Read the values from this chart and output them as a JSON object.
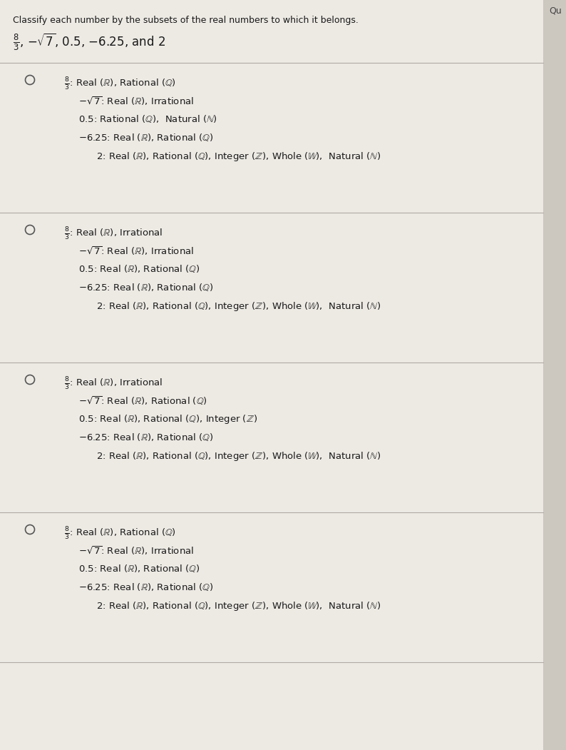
{
  "bg_color": "#ccc8c0",
  "white_bg": "#edeae4",
  "title": "Classify each number by the subsets of the real numbers to which it belongs.",
  "options": [
    {
      "lines": [
        {
          "indent": 0,
          "text": "$\\frac{8}{3}$: Real ($\\mathbb{R}$), Rational ($\\mathbb{Q}$)"
        },
        {
          "indent": 1,
          "text": "$-\\sqrt{7}$: Real ($\\mathbb{R}$), Irrational"
        },
        {
          "indent": 1,
          "text": "$0.5$: Rational ($\\mathbb{Q}$),  Natural ($\\mathbb{N}$)"
        },
        {
          "indent": 1,
          "text": "$-6.25$: Real ($\\mathbb{R}$), Rational ($\\mathbb{Q}$)"
        },
        {
          "indent": 2,
          "text": "$2$: Real ($\\mathbb{R}$), Rational ($\\mathbb{Q}$), Integer ($\\mathbb{Z}$), Whole ($\\mathbb{W}$),  Natural ($\\mathbb{N}$)"
        }
      ]
    },
    {
      "lines": [
        {
          "indent": 0,
          "text": "$\\frac{8}{3}$: Real ($\\mathbb{R}$), Irrational"
        },
        {
          "indent": 1,
          "text": "$-\\sqrt{7}$: Real ($\\mathbb{R}$), Irrational"
        },
        {
          "indent": 1,
          "text": "$0.5$: Real ($\\mathbb{R}$), Rational ($\\mathbb{Q}$)"
        },
        {
          "indent": 1,
          "text": "$-6.25$: Real ($\\mathbb{R}$), Rational ($\\mathbb{Q}$)"
        },
        {
          "indent": 2,
          "text": "$2$: Real ($\\mathbb{R}$), Rational ($\\mathbb{Q}$), Integer ($\\mathbb{Z}$), Whole ($\\mathbb{W}$),  Natural ($\\mathbb{N}$)"
        }
      ]
    },
    {
      "lines": [
        {
          "indent": 0,
          "text": "$\\frac{8}{3}$: Real ($\\mathbb{R}$), Irrational"
        },
        {
          "indent": 1,
          "text": "$-\\sqrt{7}$: Real ($\\mathbb{R}$), Rational ($\\mathbb{Q}$)"
        },
        {
          "indent": 1,
          "text": "$0.5$: Real ($\\mathbb{R}$), Rational ($\\mathbb{Q}$), Integer ($\\mathbb{Z}$)"
        },
        {
          "indent": 1,
          "text": "$-6.25$: Real ($\\mathbb{R}$), Rational ($\\mathbb{Q}$)"
        },
        {
          "indent": 2,
          "text": "$2$: Real ($\\mathbb{R}$), Rational ($\\mathbb{Q}$), Integer ($\\mathbb{Z}$), Whole ($\\mathbb{W}$),  Natural ($\\mathbb{N}$)"
        }
      ]
    },
    {
      "lines": [
        {
          "indent": 0,
          "text": "$\\frac{8}{3}$: Real ($\\mathbb{R}$), Rational ($\\mathbb{Q}$)"
        },
        {
          "indent": 1,
          "text": "$-\\sqrt{7}$: Real ($\\mathbb{R}$), Irrational"
        },
        {
          "indent": 1,
          "text": "$0.5$: Real ($\\mathbb{R}$), Rational ($\\mathbb{Q}$)"
        },
        {
          "indent": 1,
          "text": "$-6.25$: Real ($\\mathbb{R}$), Rational ($\\mathbb{Q}$)"
        },
        {
          "indent": 2,
          "text": "$2$: Real ($\\mathbb{R}$), Rational ($\\mathbb{Q}$), Integer ($\\mathbb{Z}$), Whole ($\\mathbb{W}$),  Natural ($\\mathbb{N}$)"
        }
      ]
    }
  ],
  "divider_color": "#b0aba3",
  "text_color": "#1a1a1a",
  "circle_color": "#555555",
  "qu_color": "#444444"
}
